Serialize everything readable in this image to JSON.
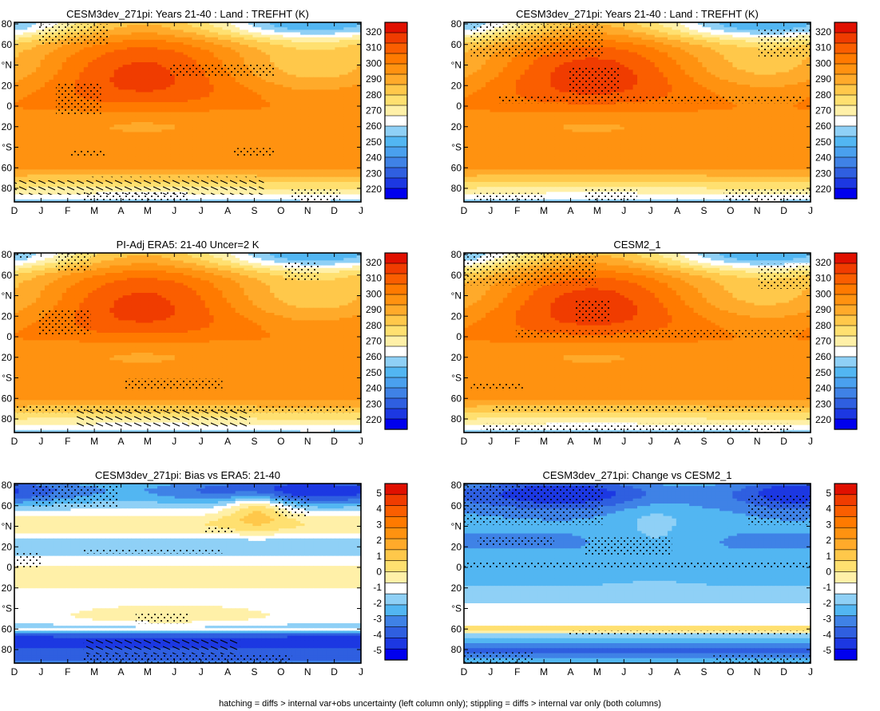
{
  "chart_data": [
    {
      "type": "heatmap",
      "title": "CESM3dev_271pi: Years 21-40 : Land : TREFHT (K)",
      "x": [
        "D",
        "J",
        "F",
        "M",
        "A",
        "M",
        "J",
        "J",
        "A",
        "S",
        "O",
        "N",
        "D",
        "J"
      ],
      "y_ticks": [
        "80",
        "60",
        "°N",
        "20",
        "0",
        "20",
        "°S",
        "60",
        "80"
      ],
      "colorbar": [
        "320",
        "310",
        "300",
        "290",
        "280",
        "270",
        "260",
        "250",
        "240",
        "230",
        "220"
      ],
      "hatched": true
    },
    {
      "type": "heatmap",
      "title": "CESM3dev_271pi: Years 21-40 : Land : TREFHT (K)",
      "x": [
        "D",
        "J",
        "F",
        "M",
        "A",
        "M",
        "J",
        "J",
        "A",
        "S",
        "O",
        "N",
        "D",
        "J"
      ],
      "y_ticks": [
        "80",
        "60",
        "°N",
        "20",
        "0",
        "20",
        "°S",
        "60",
        "80"
      ],
      "colorbar": [
        "320",
        "310",
        "300",
        "290",
        "280",
        "270",
        "260",
        "250",
        "240",
        "230",
        "220"
      ],
      "hatched": false
    },
    {
      "type": "heatmap",
      "title": "PI-Adj ERA5: 21-40 Uncer=2 K",
      "x": [
        "D",
        "J",
        "F",
        "M",
        "A",
        "M",
        "J",
        "J",
        "A",
        "S",
        "O",
        "N",
        "D",
        "J"
      ],
      "y_ticks": [
        "80",
        "60",
        "°N",
        "20",
        "0",
        "20",
        "°S",
        "60",
        "80"
      ],
      "colorbar": [
        "320",
        "310",
        "300",
        "290",
        "280",
        "270",
        "260",
        "250",
        "240",
        "230",
        "220"
      ],
      "hatched": true
    },
    {
      "type": "heatmap",
      "title": "CESM2_1",
      "x": [
        "D",
        "J",
        "F",
        "M",
        "A",
        "M",
        "J",
        "J",
        "A",
        "S",
        "O",
        "N",
        "D",
        "J"
      ],
      "y_ticks": [
        "80",
        "60",
        "°N",
        "20",
        "0",
        "20",
        "°S",
        "60",
        "80"
      ],
      "colorbar": [
        "320",
        "310",
        "300",
        "290",
        "280",
        "270",
        "260",
        "250",
        "240",
        "230",
        "220"
      ],
      "hatched": false
    },
    {
      "type": "heatmap",
      "title": "CESM3dev_271pi: Bias vs ERA5: 21-40",
      "x": [
        "D",
        "J",
        "F",
        "M",
        "A",
        "M",
        "J",
        "J",
        "A",
        "S",
        "O",
        "N",
        "D",
        "J"
      ],
      "y_ticks": [
        "80",
        "60",
        "°N",
        "20",
        "0",
        "20",
        "°S",
        "60",
        "80"
      ],
      "colorbar": [
        "5",
        "4",
        "3",
        "2",
        "1",
        "0",
        "-1",
        "-2",
        "-3",
        "-4",
        "-5"
      ],
      "hatched": true
    },
    {
      "type": "heatmap",
      "title": "CESM3dev_271pi: Change vs CESM2_1",
      "x": [
        "D",
        "J",
        "F",
        "M",
        "A",
        "M",
        "J",
        "J",
        "A",
        "S",
        "O",
        "N",
        "D",
        "J"
      ],
      "y_ticks": [
        "80",
        "60",
        "°N",
        "20",
        "0",
        "20",
        "°S",
        "60",
        "80"
      ],
      "colorbar": [
        "5",
        "4",
        "3",
        "2",
        "1",
        "0",
        "-1",
        "-2",
        "-3",
        "-4",
        "-5"
      ],
      "hatched": false
    }
  ],
  "colors": {
    "abs_scale": [
      "#0000ee",
      "#1c38e2",
      "#2f5fe0",
      "#3f82e6",
      "#4aa0ee",
      "#52b6f2",
      "#8fd0f6",
      "#ffffff",
      "#fff0a8",
      "#ffe070",
      "#ffc84a",
      "#ffaa2a",
      "#ff9210",
      "#ff7a00",
      "#fa5e00",
      "#f03c00",
      "#e01000"
    ],
    "diff_scale": [
      "#0000ee",
      "#1c38e2",
      "#2f5fe0",
      "#3f82e6",
      "#52b6f2",
      "#8fd0f6",
      "#ffffff",
      "#fff0a8",
      "#ffe070",
      "#ffc84a",
      "#ffaa2a",
      "#ff9210",
      "#ff7a00",
      "#fa5e00",
      "#f03c00",
      "#e01000"
    ]
  },
  "footnote": "hatching = diffs > internal var+obs uncertainty (left column only); stippling = diffs > internal var only (both columns)"
}
